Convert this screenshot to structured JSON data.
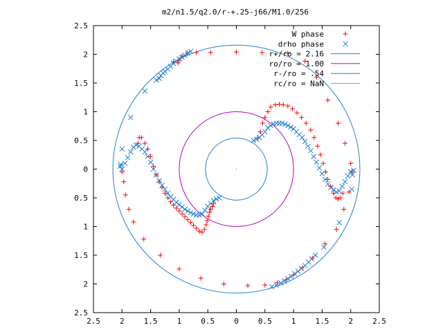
{
  "chart_data": {
    "type": "scatter",
    "title": "m2/n1.5/q2.0/r-+.25-j66/M1.0/256",
    "xlabel": "",
    "ylabel": "",
    "xlim": [
      -2.5,
      2.5
    ],
    "ylim": [
      -2.5,
      2.5
    ],
    "x_ticks": [
      -2.5,
      -2,
      -1.5,
      -1,
      -0.5,
      0,
      0.5,
      1,
      1.5,
      2,
      2.5
    ],
    "y_ticks": [
      -2.5,
      -2,
      -1.5,
      -1,
      -0.5,
      0,
      0.5,
      1,
      1.5,
      2,
      2.5
    ],
    "x_tick_labels": [
      "2.5",
      "2",
      "1.5",
      "1",
      "0.5",
      "0",
      "0.5",
      "1",
      "1.5",
      "2",
      "2.5"
    ],
    "y_tick_labels": [
      "2.5",
      "2",
      "1.5",
      "1",
      "0.5",
      "0",
      "0.5",
      "1",
      "1.5",
      "2",
      "2.5"
    ],
    "grid": false,
    "legend_position": "top-right",
    "legend": [
      {
        "label": "W phase",
        "marker": "plus",
        "color": "#ff0000"
      },
      {
        "label": "drho phase",
        "marker": "x",
        "color": "#1c7fd4"
      },
      {
        "label": "r+/ro = 2.16",
        "marker": "line",
        "color": "#1c7fd4"
      },
      {
        "label": "ro/ro = 1.00",
        "marker": "line",
        "color": "#b000b8"
      },
      {
        "label": "r-/ro = .54",
        "marker": "line",
        "color": "#1c7fd4"
      },
      {
        "label": "rc/ro = NaN",
        "marker": "line",
        "color": "#3fc0e0"
      }
    ],
    "circles": [
      {
        "r": 2.16,
        "color": "#1c7fd4"
      },
      {
        "r": 1.0,
        "color": "#b000b8"
      },
      {
        "r": 0.54,
        "color": "#1c7fd4"
      }
    ],
    "series": [
      {
        "name": "W phase",
        "color": "#ff0000",
        "marker": "plus",
        "points": [
          [
            -2.0,
            -0.05
          ],
          [
            -1.97,
            -0.22
          ],
          [
            -1.94,
            -0.45
          ],
          [
            -1.88,
            -0.7
          ],
          [
            -1.8,
            -0.92
          ],
          [
            -1.62,
            -1.22
          ],
          [
            -1.33,
            -1.5
          ],
          [
            -1.0,
            -1.74
          ],
          [
            -0.62,
            -1.9
          ],
          [
            -0.22,
            -2.0
          ],
          [
            0.2,
            -2.03
          ],
          [
            0.5,
            -2.02
          ],
          [
            0.72,
            -1.98
          ],
          [
            0.88,
            -1.92
          ],
          [
            1.0,
            -1.84
          ],
          [
            1.15,
            -1.72
          ],
          [
            1.33,
            -1.55
          ],
          [
            1.55,
            -1.3
          ],
          [
            1.75,
            -1.05
          ],
          [
            1.88,
            -0.7
          ],
          [
            1.97,
            -0.4
          ],
          [
            2.02,
            -0.05
          ],
          [
            2.0,
            0.1
          ],
          [
            1.9,
            0.45
          ],
          [
            1.78,
            0.8
          ],
          [
            1.6,
            1.2
          ],
          [
            1.4,
            1.6
          ],
          [
            1.2,
            1.88
          ],
          [
            0.9,
            2.02
          ],
          [
            0.45,
            2.03
          ],
          [
            0.0,
            2.04
          ],
          [
            -0.45,
            2.03
          ],
          [
            -0.7,
            2.03
          ],
          [
            -0.95,
            1.97
          ],
          [
            -1.0,
            1.9
          ],
          [
            -1.1,
            1.87
          ],
          [
            -1.02,
            1.85
          ],
          [
            -0.86,
            2.02
          ],
          [
            -1.72,
            0.45
          ],
          [
            -1.7,
            0.55
          ],
          [
            -1.66,
            0.55
          ],
          [
            -1.6,
            0.45
          ],
          [
            -1.55,
            0.35
          ],
          [
            -1.5,
            0.22
          ],
          [
            -1.45,
            0.05
          ],
          [
            -1.4,
            -0.1
          ],
          [
            -1.35,
            -0.22
          ],
          [
            -1.3,
            -0.32
          ],
          [
            -1.25,
            -0.42
          ],
          [
            -1.2,
            -0.5
          ],
          [
            -1.15,
            -0.57
          ],
          [
            -1.1,
            -0.63
          ],
          [
            -1.05,
            -0.68
          ],
          [
            -1.0,
            -0.73
          ],
          [
            -0.95,
            -0.78
          ],
          [
            -0.9,
            -0.83
          ],
          [
            -0.85,
            -0.88
          ],
          [
            -0.8,
            -0.93
          ],
          [
            -0.75,
            -0.98
          ],
          [
            -0.7,
            -1.03
          ],
          [
            -0.65,
            -1.08
          ],
          [
            -0.6,
            -1.1
          ],
          [
            -0.56,
            -1.05
          ],
          [
            -0.53,
            -0.97
          ],
          [
            -0.51,
            -0.9
          ],
          [
            -0.49,
            -0.82
          ],
          [
            -0.47,
            -0.75
          ],
          [
            -0.45,
            -0.7
          ],
          [
            -0.42,
            -0.65
          ],
          [
            -0.4,
            -0.6
          ],
          [
            0.38,
            0.55
          ],
          [
            0.42,
            0.65
          ],
          [
            0.46,
            0.8
          ],
          [
            0.5,
            0.9
          ],
          [
            0.55,
            1.0
          ],
          [
            0.6,
            1.08
          ],
          [
            0.68,
            1.12
          ],
          [
            0.75,
            1.13
          ],
          [
            0.82,
            1.12
          ],
          [
            0.9,
            1.1
          ],
          [
            0.98,
            1.05
          ],
          [
            1.06,
            0.98
          ],
          [
            1.14,
            0.9
          ],
          [
            1.22,
            0.8
          ],
          [
            1.3,
            0.68
          ],
          [
            1.36,
            0.55
          ],
          [
            1.42,
            0.4
          ],
          [
            1.47,
            0.25
          ],
          [
            1.52,
            0.1
          ],
          [
            1.56,
            -0.05
          ],
          [
            1.6,
            -0.18
          ],
          [
            1.65,
            -0.3
          ],
          [
            1.7,
            -0.42
          ],
          [
            1.74,
            -0.5
          ],
          [
            1.78,
            -0.52
          ],
          [
            1.82,
            -0.5
          ],
          [
            1.86,
            -0.42
          ]
        ]
      },
      {
        "name": "drho phase",
        "color": "#1c7fd4",
        "marker": "x",
        "points": [
          [
            -2.03,
            0.05
          ],
          [
            -2.02,
            0.08
          ],
          [
            -2.0,
            0.35
          ],
          [
            -1.85,
            0.9
          ],
          [
            -1.6,
            1.36
          ],
          [
            -1.4,
            1.55
          ],
          [
            -1.35,
            1.58
          ],
          [
            -1.32,
            1.63
          ],
          [
            -1.28,
            1.67
          ],
          [
            -1.25,
            1.7
          ],
          [
            -1.2,
            1.74
          ],
          [
            -1.15,
            1.79
          ],
          [
            -1.1,
            1.84
          ],
          [
            -1.05,
            1.88
          ],
          [
            -1.0,
            1.92
          ],
          [
            -0.95,
            1.95
          ],
          [
            -0.9,
            1.98
          ],
          [
            -0.85,
            2.02
          ],
          [
            -0.8,
            2.05
          ],
          [
            2.03,
            -0.1
          ],
          [
            2.05,
            -0.02
          ],
          [
            2.02,
            -0.35
          ],
          [
            1.8,
            -0.93
          ],
          [
            1.53,
            -1.36
          ],
          [
            1.38,
            -1.5
          ],
          [
            1.32,
            -1.56
          ],
          [
            1.26,
            -1.62
          ],
          [
            1.2,
            -1.68
          ],
          [
            1.14,
            -1.73
          ],
          [
            1.08,
            -1.78
          ],
          [
            1.02,
            -1.82
          ],
          [
            0.96,
            -1.87
          ],
          [
            0.9,
            -1.91
          ],
          [
            0.84,
            -1.95
          ],
          [
            0.78,
            -1.98
          ],
          [
            0.7,
            -2.02
          ],
          [
            0.62,
            -2.05
          ],
          [
            -2.0,
            0.0
          ],
          [
            -1.95,
            0.1
          ],
          [
            -1.9,
            0.2
          ],
          [
            -1.85,
            0.3
          ],
          [
            -1.8,
            0.38
          ],
          [
            -1.75,
            0.42
          ],
          [
            -1.7,
            0.4
          ],
          [
            -1.65,
            0.35
          ],
          [
            -1.6,
            0.3
          ],
          [
            -1.55,
            0.22
          ],
          [
            -1.5,
            0.12
          ],
          [
            -1.45,
            0.0
          ],
          [
            -1.4,
            -0.1
          ],
          [
            -1.35,
            -0.2
          ],
          [
            -1.3,
            -0.28
          ],
          [
            -1.25,
            -0.35
          ],
          [
            -1.2,
            -0.42
          ],
          [
            -1.15,
            -0.48
          ],
          [
            -1.1,
            -0.53
          ],
          [
            -1.05,
            -0.58
          ],
          [
            -1.0,
            -0.62
          ],
          [
            -0.95,
            -0.66
          ],
          [
            -0.9,
            -0.7
          ],
          [
            -0.85,
            -0.73
          ],
          [
            -0.8,
            -0.76
          ],
          [
            -0.75,
            -0.78
          ],
          [
            -0.7,
            -0.8
          ],
          [
            -0.65,
            -0.8
          ],
          [
            -0.6,
            -0.78
          ],
          [
            -0.55,
            -0.72
          ],
          [
            -0.5,
            -0.65
          ],
          [
            -0.45,
            -0.6
          ],
          [
            -0.4,
            -0.55
          ],
          [
            -0.35,
            -0.52
          ],
          [
            -0.3,
            -0.5
          ],
          [
            0.3,
            0.5
          ],
          [
            0.35,
            0.52
          ],
          [
            0.4,
            0.55
          ],
          [
            0.45,
            0.6
          ],
          [
            0.5,
            0.65
          ],
          [
            0.55,
            0.72
          ],
          [
            0.6,
            0.76
          ],
          [
            0.65,
            0.79
          ],
          [
            0.7,
            0.8
          ],
          [
            0.75,
            0.8
          ],
          [
            0.8,
            0.8
          ],
          [
            0.85,
            0.78
          ],
          [
            0.9,
            0.76
          ],
          [
            0.95,
            0.73
          ],
          [
            1.0,
            0.7
          ],
          [
            1.05,
            0.65
          ],
          [
            1.1,
            0.6
          ],
          [
            1.15,
            0.55
          ],
          [
            1.2,
            0.48
          ],
          [
            1.25,
            0.4
          ],
          [
            1.3,
            0.32
          ],
          [
            1.35,
            0.22
          ],
          [
            1.4,
            0.12
          ],
          [
            1.45,
            0.02
          ],
          [
            1.5,
            -0.08
          ],
          [
            1.55,
            -0.18
          ],
          [
            1.6,
            -0.26
          ],
          [
            1.65,
            -0.32
          ],
          [
            1.7,
            -0.36
          ],
          [
            1.75,
            -0.4
          ],
          [
            1.8,
            -0.38
          ],
          [
            1.85,
            -0.3
          ],
          [
            1.9,
            -0.22
          ],
          [
            1.95,
            -0.12
          ],
          [
            2.0,
            -0.04
          ]
        ]
      }
    ]
  }
}
